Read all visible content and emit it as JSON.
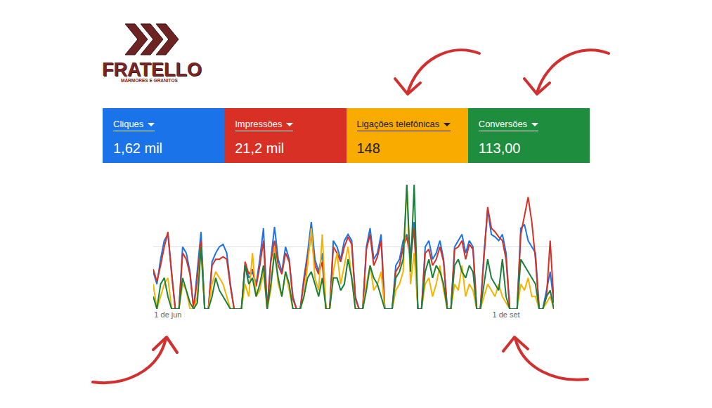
{
  "logo": {
    "name": "FRATELLO",
    "tagline": "MÁRMORES E GRANITOS"
  },
  "cards": [
    {
      "label": "Cliques",
      "value": "1,62 mil",
      "color": "#1a73e8"
    },
    {
      "label": "Impressões",
      "value": "21,2 mil",
      "color": "#d93025"
    },
    {
      "label": "Ligações telefônicas",
      "value": "148",
      "color": "#f9ab00"
    },
    {
      "label": "Conversões",
      "value": "113,00",
      "color": "#1e8e3e"
    }
  ],
  "chart_data": {
    "type": "line",
    "categories": [
      null,
      null,
      null,
      null,
      "1 de jun",
      null,
      null,
      null,
      null,
      null,
      null,
      null,
      null,
      null,
      null,
      null,
      null,
      null,
      null,
      null,
      null,
      null,
      null,
      null,
      null,
      null,
      null,
      null,
      null,
      null,
      null,
      null,
      null,
      null,
      null,
      null,
      null,
      null,
      null,
      null,
      null,
      null,
      null,
      null,
      null,
      null,
      null,
      null,
      null,
      null,
      null,
      null,
      null,
      null,
      null,
      null,
      null,
      null,
      null,
      null,
      null,
      null,
      null,
      null,
      null,
      null,
      null,
      null,
      null,
      null,
      null,
      null,
      null,
      null,
      null,
      null,
      null,
      null,
      null,
      null,
      null,
      null,
      null,
      null,
      null,
      null,
      null,
      null,
      null,
      null,
      null,
      null,
      null,
      null,
      null,
      null,
      "1 de set",
      null,
      null,
      null,
      null,
      null,
      null,
      null,
      null,
      null,
      null,
      null,
      null,
      null
    ],
    "series": [
      {
        "name": "Cliques",
        "color": "#1a73e8",
        "values": [
          30,
          20,
          40,
          55,
          60,
          30,
          0,
          0,
          50,
          45,
          30,
          0,
          30,
          62,
          0,
          0,
          38,
          45,
          50,
          52,
          45,
          20,
          0,
          0,
          0,
          35,
          25,
          30,
          20,
          40,
          65,
          0,
          40,
          66,
          40,
          30,
          50,
          40,
          10,
          0,
          0,
          25,
          45,
          70,
          40,
          30,
          45,
          0,
          0,
          55,
          50,
          40,
          55,
          60,
          55,
          10,
          0,
          0,
          50,
          65,
          40,
          45,
          60,
          0,
          0,
          0,
          35,
          40,
          55,
          60,
          45,
          70,
          0,
          0,
          50,
          55,
          40,
          45,
          55,
          40,
          0,
          0,
          50,
          55,
          60,
          45,
          55,
          50,
          0,
          0,
          45,
          80,
          60,
          58,
          55,
          60,
          45,
          0,
          0,
          0,
          65,
          68,
          55,
          50,
          45,
          0,
          0,
          15,
          30,
          5
        ]
      },
      {
        "name": "Impressões",
        "color": "#d93025",
        "values": [
          32,
          22,
          35,
          50,
          62,
          28,
          0,
          0,
          45,
          40,
          28,
          0,
          25,
          55,
          0,
          0,
          35,
          40,
          40,
          42,
          40,
          18,
          0,
          0,
          0,
          38,
          28,
          32,
          18,
          35,
          55,
          0,
          38,
          55,
          35,
          28,
          45,
          38,
          8,
          0,
          0,
          22,
          40,
          60,
          35,
          28,
          38,
          0,
          0,
          50,
          45,
          38,
          50,
          58,
          52,
          8,
          0,
          0,
          48,
          60,
          35,
          42,
          55,
          0,
          0,
          0,
          30,
          35,
          50,
          58,
          40,
          65,
          0,
          0,
          45,
          48,
          35,
          40,
          50,
          38,
          0,
          0,
          48,
          50,
          55,
          40,
          52,
          48,
          0,
          0,
          42,
          82,
          65,
          62,
          58,
          55,
          40,
          0,
          0,
          0,
          60,
          75,
          90,
          70,
          40,
          0,
          0,
          10,
          55,
          5
        ]
      },
      {
        "name": "Ligações telefônicas",
        "color": "#f4b400",
        "values": [
          20,
          0,
          10,
          20,
          25,
          0,
          0,
          0,
          20,
          15,
          0,
          0,
          10,
          50,
          0,
          0,
          20,
          30,
          25,
          20,
          10,
          0,
          0,
          0,
          0,
          20,
          10,
          45,
          10,
          15,
          30,
          0,
          15,
          50,
          20,
          10,
          30,
          15,
          0,
          0,
          0,
          10,
          35,
          65,
          25,
          15,
          60,
          0,
          0,
          30,
          45,
          20,
          35,
          50,
          25,
          0,
          0,
          0,
          20,
          35,
          15,
          20,
          30,
          0,
          0,
          0,
          15,
          20,
          30,
          100,
          20,
          45,
          0,
          0,
          20,
          25,
          10,
          20,
          35,
          15,
          0,
          0,
          20,
          15,
          35,
          10,
          20,
          15,
          0,
          0,
          10,
          20,
          15,
          10,
          20,
          10,
          5,
          0,
          0,
          0,
          20,
          15,
          25,
          10,
          10,
          0,
          0,
          5,
          10,
          0
        ]
      },
      {
        "name": "Conversões",
        "color": "#188038",
        "values": [
          10,
          0,
          20,
          25,
          10,
          0,
          0,
          0,
          25,
          15,
          5,
          0,
          5,
          50,
          0,
          0,
          10,
          25,
          15,
          10,
          5,
          0,
          0,
          0,
          0,
          35,
          20,
          25,
          10,
          20,
          35,
          0,
          20,
          45,
          25,
          10,
          30,
          20,
          0,
          0,
          0,
          10,
          25,
          30,
          20,
          10,
          25,
          0,
          0,
          25,
          25,
          15,
          20,
          40,
          25,
          0,
          0,
          0,
          15,
          35,
          25,
          20,
          10,
          0,
          0,
          0,
          25,
          30,
          40,
          100,
          30,
          100,
          0,
          0,
          30,
          40,
          25,
          35,
          30,
          20,
          0,
          0,
          35,
          40,
          30,
          25,
          35,
          30,
          0,
          0,
          20,
          40,
          25,
          20,
          15,
          40,
          10,
          0,
          0,
          0,
          40,
          35,
          30,
          25,
          20,
          0,
          0,
          10,
          15,
          0
        ]
      }
    ],
    "ylim": [
      0,
      100
    ],
    "yticks": [
      0,
      50,
      100
    ],
    "grid": true,
    "tick_labels": "x"
  }
}
